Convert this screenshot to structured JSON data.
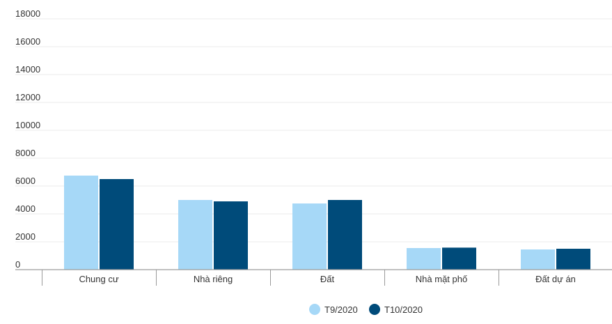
{
  "chart_data": {
    "type": "bar",
    "categories": [
      "Chung cư",
      "Nhà riêng",
      "Đất",
      "Nhà mặt phố",
      "Đất dự án"
    ],
    "series": [
      {
        "name": "T9/2020",
        "color": "#a6d8f7",
        "values": [
          6750,
          5000,
          4750,
          1550,
          1450
        ]
      },
      {
        "name": "T10/2020",
        "color": "#004b7a",
        "values": [
          6500,
          4900,
          5000,
          1580,
          1500
        ]
      }
    ],
    "yticks": [
      "0",
      "2000",
      "4000",
      "6000",
      "8000",
      "10000",
      "12000",
      "14000",
      "16000",
      "18000"
    ],
    "ylim": [
      0,
      18000
    ],
    "grid": true,
    "legend_position": "bottom"
  }
}
